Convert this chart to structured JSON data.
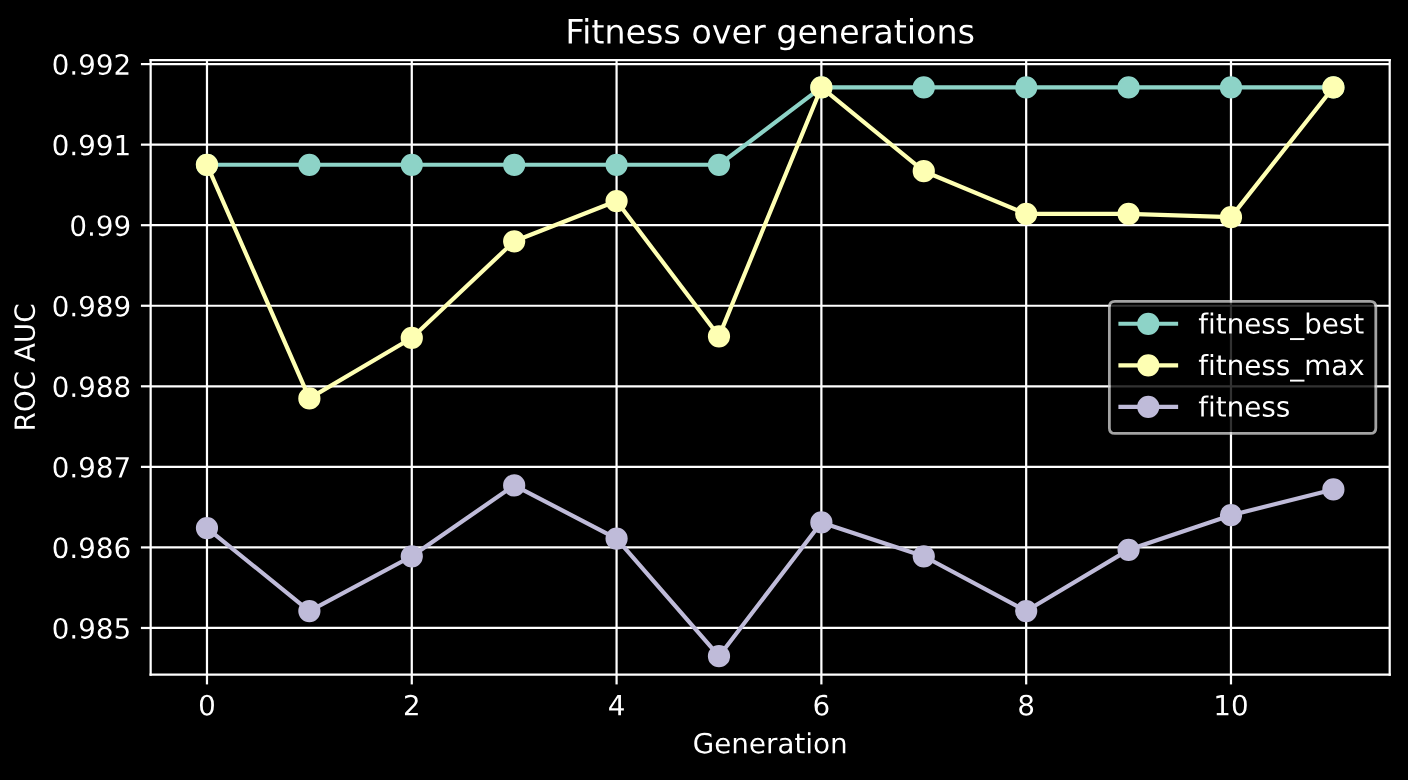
{
  "chart_data": {
    "type": "line",
    "title": "Fitness over generations",
    "xlabel": "Generation",
    "ylabel": "ROC AUC",
    "x": [
      0,
      1,
      2,
      3,
      4,
      5,
      6,
      7,
      8,
      9,
      10,
      11
    ],
    "series": [
      {
        "name": "fitness_best",
        "color": "#8dd3c7",
        "values": [
          0.99075,
          0.99075,
          0.99075,
          0.99075,
          0.99075,
          0.99075,
          0.99171,
          0.99171,
          0.99171,
          0.99171,
          0.99171,
          0.99171
        ]
      },
      {
        "name": "fitness_max",
        "color": "#feffb3",
        "values": [
          0.99075,
          0.98785,
          0.9886,
          0.9898,
          0.9903,
          0.98862,
          0.99171,
          0.99067,
          0.99014,
          0.99014,
          0.9901,
          0.99171
        ]
      },
      {
        "name": "fitness",
        "color": "#bfbbd9",
        "values": [
          0.98624,
          0.98521,
          0.98589,
          0.98677,
          0.98611,
          0.98465,
          0.98631,
          0.98589,
          0.98521,
          0.98597,
          0.9864,
          0.98672
        ]
      }
    ],
    "xlim": [
      -0.55,
      11.55
    ],
    "ylim": [
      0.98442,
      0.99205
    ],
    "xticks": [
      0,
      2,
      4,
      6,
      8,
      10
    ],
    "yticks": [
      0.985,
      0.986,
      0.987,
      0.988,
      0.989,
      0.99,
      0.991,
      0.992
    ],
    "grid": true,
    "legend": "right",
    "marker": "circle",
    "line_style": "solid"
  }
}
